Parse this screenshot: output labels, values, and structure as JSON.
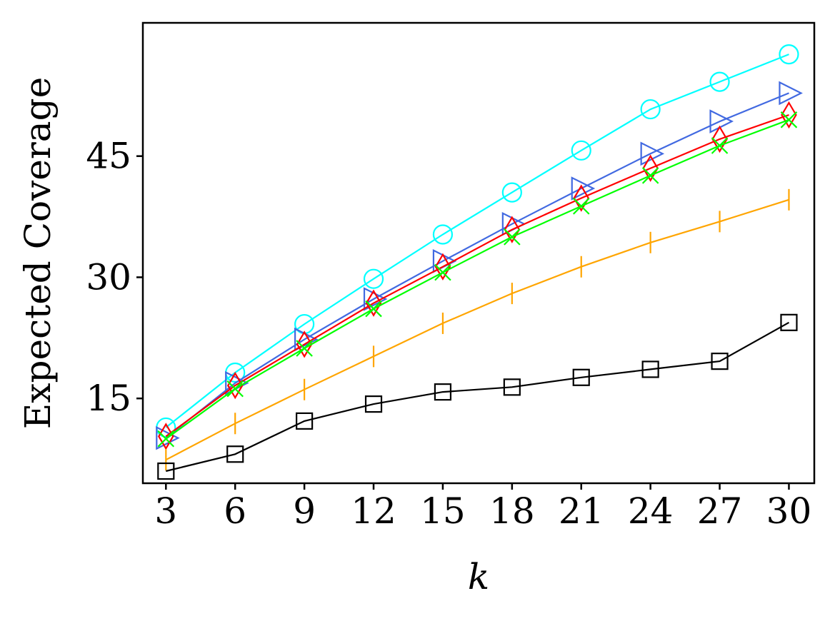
{
  "chart_data": {
    "type": "line",
    "title": "",
    "xlabel": "k",
    "ylabel": "Expected Coverage",
    "x": [
      3,
      6,
      9,
      12,
      15,
      18,
      21,
      24,
      27,
      30
    ],
    "xticks": [
      "3",
      "6",
      "9",
      "12",
      "15",
      "18",
      "21",
      "24",
      "27",
      "30"
    ],
    "yticks": [
      "15",
      "30",
      "45"
    ],
    "ytick_values": [
      15,
      30,
      45
    ],
    "xlim": [
      2,
      31.1
    ],
    "ylim": [
      4.5,
      61.5
    ],
    "grid": false,
    "legend": "none",
    "series": [
      {
        "color": "#00ffff",
        "marker": "circle",
        "values": [
          11.4,
          18.2,
          24.2,
          29.8,
          35.3,
          40.5,
          45.7,
          50.8,
          54.2,
          57.6
        ]
      },
      {
        "color": "#4169e1",
        "marker": "triangle-right",
        "values": [
          10.1,
          16.9,
          22.3,
          27.3,
          32.0,
          36.6,
          41.0,
          45.3,
          49.3,
          52.8
        ]
      },
      {
        "color": "#ff0000",
        "marker": "thin-diamond",
        "values": [
          10.3,
          16.6,
          21.7,
          26.8,
          31.3,
          35.9,
          39.8,
          43.5,
          47.1,
          50.1
        ]
      },
      {
        "color": "#00ff00",
        "marker": "x",
        "values": [
          10.0,
          16.2,
          21.2,
          26.1,
          30.6,
          35.0,
          38.8,
          42.6,
          46.3,
          49.5
        ]
      },
      {
        "color": "#ffa500",
        "marker": "vline",
        "values": [
          7.4,
          11.9,
          16.1,
          20.2,
          24.3,
          28.0,
          31.3,
          34.3,
          36.9,
          39.6
        ]
      },
      {
        "color": "#000000",
        "marker": "square",
        "values": [
          6.0,
          8.1,
          12.2,
          14.3,
          15.8,
          16.4,
          17.6,
          18.6,
          19.6,
          24.4
        ]
      }
    ]
  }
}
